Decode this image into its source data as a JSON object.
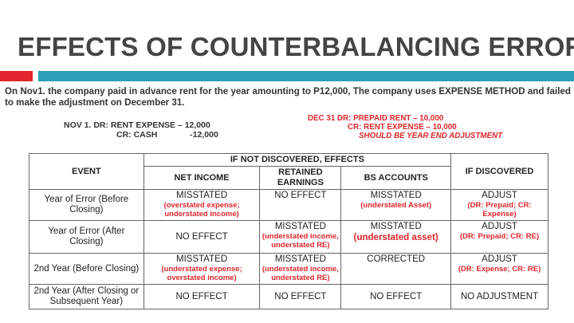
{
  "title": "EFFECTS OF COUNTERBALANCING ERRORS",
  "colors": {
    "accent_red": "#e0262c",
    "accent_teal": "#2aa0b8"
  },
  "intro": "On Nov1. the company paid in advance rent for the year amounting to P12,000, The company uses EXPENSE METHOD and failed to make the adjustment on December 31.",
  "nov_entry": {
    "line1": "NOV 1. DR: RENT EXPENSE – 12,000",
    "line2": "CR: CASH              -12,000"
  },
  "dec_entry": {
    "line1": "DEC 31 DR: PREPAID RENT – 10,000",
    "line2": "CR: RENT EXPENSE – 10,000",
    "line3": "SHOULD BE YEAR END ADJUSTMENT"
  },
  "table": {
    "headers": {
      "event": "EVENT",
      "group": "IF NOT DISCOVERED, EFFECTS",
      "net_income": "NET INCOME",
      "retained_earnings": "RETAINED EARNINGS",
      "bs_accounts": "BS ACCOUNTS",
      "if_discovered": "IF DISCOVERED"
    },
    "rows": [
      {
        "event": "Year of Error (Before Closing)",
        "ni": "MISSTATED",
        "ni_note": "(overstated expense; understated income)",
        "re": "NO EFFECT",
        "re_note": "",
        "bs": "MISSTATED",
        "bs_note": "(understated Asset)",
        "disc": "ADJUST",
        "disc_note": "(DR: Prepaid; CR: Expense)"
      },
      {
        "event": "Year of Error (After Closing)",
        "ni": "NO EFFECT",
        "ni_note": "",
        "re": "MISSTATED",
        "re_note": "(understated income, understated RE)",
        "bs": "MISSTATED",
        "bs_note": "(understated asset)",
        "disc": "ADJUST",
        "disc_note": "(DR: Prepaid; CR: RE)"
      },
      {
        "event": "2nd Year (Before Closing)",
        "ni": "MISSTATED",
        "ni_note": "(understated expense; overstated income)",
        "re": "MISSTATED",
        "re_note": "(understated income, understated RE)",
        "bs": "CORRECTED",
        "bs_note": "",
        "disc": "ADJUST",
        "disc_note": "(DR: Expense; CR: RE)"
      },
      {
        "event": "2nd Year (After Closing or Subsequent Year)",
        "ni": "NO EFFECT",
        "ni_note": "",
        "re": "NO EFFECT",
        "re_note": "",
        "bs": "NO EFFECT",
        "bs_note": "",
        "disc": "NO ADJUSTMENT",
        "disc_note": ""
      }
    ]
  }
}
